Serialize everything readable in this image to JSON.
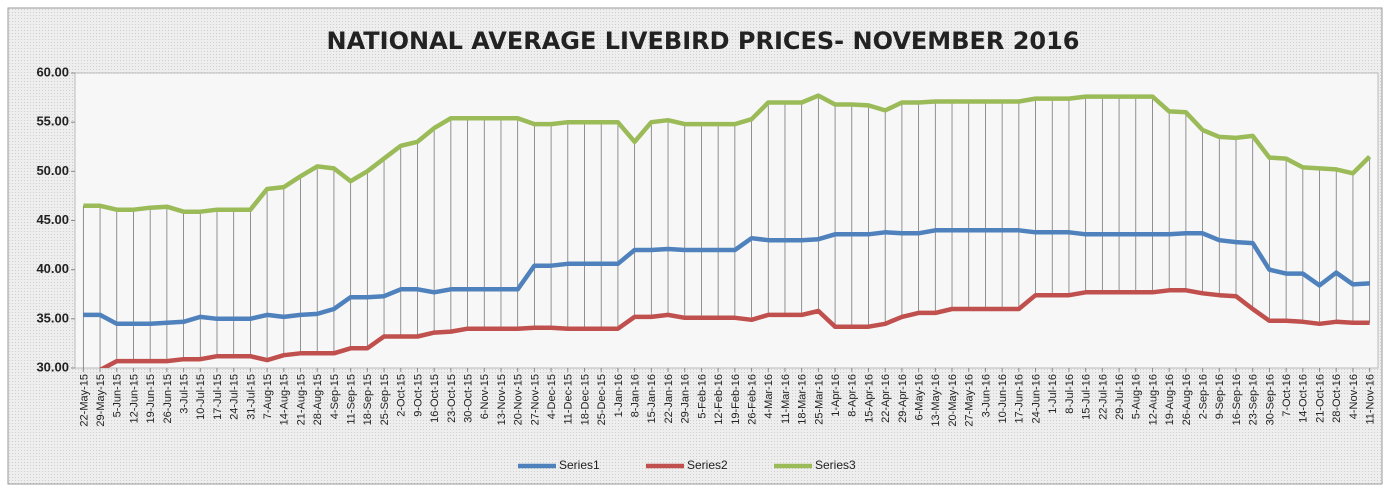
{
  "chart_data": {
    "type": "line",
    "title": "NATIONAL AVERAGE LIVEBIRD PRICES-   NOVEMBER  2016",
    "categories": [
      "22-May-15",
      "29-May-15",
      "5-Jun-15",
      "12-Jun-15",
      "19-Jun-15",
      "26-Jun-15",
      "3-Jul-15",
      "10-Jul-15",
      "17-Jul-15",
      "24-Jul-15",
      "31-Jul-15",
      "7-Aug-15",
      "14-Aug-15",
      "21-Aug-15",
      "28-Aug-15",
      "4-Sep-15",
      "11-Sep-15",
      "18-Sep-15",
      "25-Sep-15",
      "2-Oct-15",
      "9-Oct-15",
      "16-Oct-15",
      "23-Oct-15",
      "30-Oct-15",
      "6-Nov-15",
      "13-Nov-15",
      "20-Nov-15",
      "27-Nov-15",
      "4-Dec-15",
      "11-Dec-15",
      "18-Dec-15",
      "25-Dec-15",
      "1-Jan-16",
      "8-Jan-16",
      "15-Jan-16",
      "22-Jan-16",
      "29-Jan-16",
      "5-Feb-16",
      "12-Feb-16",
      "19-Feb-16",
      "26-Feb-16",
      "4-Mar-16",
      "11-Mar-16",
      "18-Mar-16",
      "25-Mar-16",
      "1-Apr-16",
      "8-Apr-16",
      "15-Apr-16",
      "22-Apr-16",
      "29-Apr-16",
      "6-May-16",
      "13-May-16",
      "20-May-16",
      "27-May-16",
      "3-Jun-16",
      "10-Jun-16",
      "17-Jun-16",
      "24-Jun-16",
      "1-Jul-16",
      "8-Jul-16",
      "15-Jul-16",
      "22-Jul-16",
      "29-Jul-16",
      "5-Aug-16",
      "12-Aug-16",
      "19-Aug-16",
      "26-Aug-16",
      "2-Sep-16",
      "9-Sep-16",
      "16-Sep-16",
      "23-Sep-16",
      "30-Sep-16",
      "7-Oct-16",
      "14-Oct-16",
      "21-Oct-16",
      "28-Oct-16",
      "4-Nov-16",
      "11-Nov-16"
    ],
    "series": [
      {
        "name": "Series1",
        "color": "#4f81bd",
        "values": [
          35.4,
          35.4,
          34.5,
          34.5,
          34.5,
          34.6,
          34.7,
          35.2,
          35.0,
          35.0,
          35.0,
          35.4,
          35.2,
          35.4,
          35.5,
          36.0,
          37.2,
          37.2,
          37.3,
          38.0,
          38.0,
          37.7,
          38.0,
          38.0,
          38.0,
          38.0,
          38.0,
          40.4,
          40.4,
          40.6,
          40.6,
          40.6,
          40.6,
          42.0,
          42.0,
          42.1,
          42.0,
          42.0,
          42.0,
          42.0,
          43.2,
          43.0,
          43.0,
          43.0,
          43.1,
          43.6,
          43.6,
          43.6,
          43.8,
          43.7,
          43.7,
          44.0,
          44.0,
          44.0,
          44.0,
          44.0,
          44.0,
          43.8,
          43.8,
          43.8,
          43.6,
          43.6,
          43.6,
          43.6,
          43.6,
          43.6,
          43.7,
          43.7,
          43.0,
          42.8,
          42.7,
          40.0,
          39.6,
          39.6,
          38.4,
          39.7,
          38.5,
          38.6
        ]
      },
      {
        "name": "Series2",
        "color": "#c0504d",
        "values": [
          29.3,
          29.8,
          30.7,
          30.7,
          30.7,
          30.7,
          30.9,
          30.9,
          31.2,
          31.2,
          31.2,
          30.8,
          31.3,
          31.5,
          31.5,
          31.5,
          32.0,
          32.0,
          33.2,
          33.2,
          33.2,
          33.6,
          33.7,
          34.0,
          34.0,
          34.0,
          34.0,
          34.1,
          34.1,
          34.0,
          34.0,
          34.0,
          34.0,
          35.2,
          35.2,
          35.4,
          35.1,
          35.1,
          35.1,
          35.1,
          34.9,
          35.4,
          35.4,
          35.4,
          35.8,
          34.2,
          34.2,
          34.2,
          34.5,
          35.2,
          35.6,
          35.6,
          36.0,
          36.0,
          36.0,
          36.0,
          36.0,
          37.4,
          37.4,
          37.4,
          37.7,
          37.7,
          37.7,
          37.7,
          37.7,
          37.9,
          37.9,
          37.6,
          37.4,
          37.3,
          36.0,
          34.8,
          34.8,
          34.7,
          34.5,
          34.7,
          34.6,
          34.6
        ]
      },
      {
        "name": "Series3",
        "color": "#9bbb59",
        "values": [
          46.5,
          46.5,
          46.1,
          46.1,
          46.3,
          46.4,
          45.9,
          45.9,
          46.1,
          46.1,
          46.1,
          48.2,
          48.4,
          49.5,
          50.5,
          50.3,
          49.0,
          50.0,
          51.3,
          52.6,
          53.0,
          54.4,
          55.4,
          55.4,
          55.4,
          55.4,
          55.4,
          54.8,
          54.8,
          55.0,
          55.0,
          55.0,
          55.0,
          53.0,
          55.0,
          55.2,
          54.8,
          54.8,
          54.8,
          54.8,
          55.3,
          57.0,
          57.0,
          57.0,
          57.7,
          56.8,
          56.8,
          56.7,
          56.2,
          57.0,
          57.0,
          57.1,
          57.1,
          57.1,
          57.1,
          57.1,
          57.1,
          57.4,
          57.4,
          57.4,
          57.6,
          57.6,
          57.6,
          57.6,
          57.6,
          56.1,
          56.0,
          54.2,
          53.5,
          53.4,
          53.6,
          51.4,
          51.3,
          50.4,
          50.3,
          50.2,
          49.8,
          51.5
        ]
      }
    ],
    "ylim": [
      30,
      60
    ],
    "yticks": [
      {
        "value": 30,
        "label": "30.00"
      },
      {
        "value": 35,
        "label": "35.00"
      },
      {
        "value": 40,
        "label": "40.00"
      },
      {
        "value": 45,
        "label": "45.00"
      },
      {
        "value": 50,
        "label": "50.00"
      },
      {
        "value": 55,
        "label": "55.00"
      },
      {
        "value": 60,
        "label": "60.00"
      }
    ],
    "grid": false,
    "legend": "bottom"
  }
}
